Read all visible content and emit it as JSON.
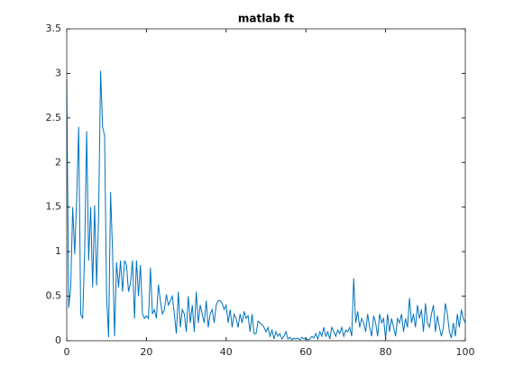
{
  "chart_data": {
    "type": "line",
    "title": "matlab ft",
    "x": [
      0,
      0.5,
      1,
      1.5,
      2,
      2.5,
      3,
      3.5,
      4,
      4.5,
      5,
      5.5,
      6,
      6.5,
      7,
      7.5,
      8,
      8.5,
      9,
      9.5,
      10,
      10.5,
      11,
      11.5,
      12,
      12.5,
      13,
      13.5,
      14,
      14.5,
      15,
      15.5,
      16,
      16.5,
      17,
      17.5,
      18,
      18.5,
      19,
      19.5,
      20,
      20.5,
      21,
      21.5,
      22,
      22.5,
      23,
      23.5,
      24,
      24.5,
      25,
      25.5,
      26,
      26.5,
      27,
      27.5,
      28,
      28.5,
      29,
      29.5,
      30,
      30.5,
      31,
      31.5,
      32,
      32.5,
      33,
      33.5,
      34,
      34.5,
      35,
      35.5,
      36,
      36.5,
      37,
      37.5,
      38,
      38.5,
      39,
      39.5,
      40,
      40.5,
      41,
      41.5,
      42,
      42.5,
      43,
      43.5,
      44,
      44.5,
      45,
      45.5,
      46,
      46.5,
      47,
      47.5,
      48,
      48.5,
      49,
      49.5,
      50,
      50.5,
      51,
      51.5,
      52,
      52.5,
      53,
      53.5,
      54,
      54.5,
      55,
      55.5,
      56,
      56.5,
      57,
      57.5,
      58,
      58.5,
      59,
      59.5,
      60,
      60.5,
      61,
      61.5,
      62,
      62.5,
      63,
      63.5,
      64,
      64.5,
      65,
      65.5,
      66,
      66.5,
      67,
      67.5,
      68,
      68.5,
      69,
      69.5,
      70,
      70.5,
      71,
      71.5,
      72,
      72.5,
      73,
      73.5,
      74,
      74.5,
      75,
      75.5,
      76,
      76.5,
      77,
      77.5,
      78,
      78.5,
      79,
      79.5,
      80,
      80.5,
      81,
      81.5,
      82,
      82.5,
      83,
      83.5,
      84,
      84.5,
      85,
      85.5,
      86,
      86.5,
      87,
      87.5,
      88,
      88.5,
      89,
      89.5,
      90,
      90.5,
      91,
      91.5,
      92,
      92.5,
      93,
      93.5,
      94,
      94.5,
      95,
      95.5,
      96,
      96.5,
      97,
      97.5,
      98,
      98.5,
      99,
      99.5,
      100
    ],
    "series": [
      {
        "color": "#0072bd",
        "values": [
          2.93,
          0.37,
          0.6,
          1.5,
          0.97,
          1.6,
          2.4,
          0.3,
          0.25,
          1.0,
          2.35,
          0.9,
          1.5,
          0.6,
          1.52,
          0.62,
          1.4,
          3.03,
          2.4,
          2.3,
          0.5,
          0.04,
          1.67,
          1.0,
          0.05,
          0.88,
          0.6,
          0.9,
          0.55,
          0.9,
          0.85,
          0.55,
          0.65,
          0.9,
          0.25,
          0.9,
          0.5,
          0.85,
          0.3,
          0.25,
          0.28,
          0.25,
          0.82,
          0.3,
          0.35,
          0.25,
          0.63,
          0.45,
          0.3,
          0.35,
          0.52,
          0.4,
          0.45,
          0.5,
          0.3,
          0.08,
          0.55,
          0.15,
          0.35,
          0.3,
          0.1,
          0.5,
          0.2,
          0.4,
          0.1,
          0.55,
          0.2,
          0.4,
          0.3,
          0.2,
          0.45,
          0.15,
          0.3,
          0.35,
          0.2,
          0.4,
          0.45,
          0.45,
          0.42,
          0.35,
          0.4,
          0.2,
          0.35,
          0.15,
          0.3,
          0.25,
          0.15,
          0.3,
          0.2,
          0.33,
          0.25,
          0.28,
          0.1,
          0.3,
          0.08,
          0.08,
          0.22,
          0.2,
          0.18,
          0.15,
          0.1,
          0.15,
          0.05,
          0.12,
          0.02,
          0.1,
          0.05,
          0.08,
          0.02,
          0.05,
          0.1,
          0.02,
          0.04,
          0.01,
          0.03,
          0.02,
          0.03,
          0.01,
          0.04,
          0.02,
          0.03,
          0.01,
          0.02,
          0.05,
          0.03,
          0.08,
          0.02,
          0.1,
          0.05,
          0.15,
          0.05,
          0.1,
          0.02,
          0.15,
          0.1,
          0.05,
          0.12,
          0.08,
          0.15,
          0.05,
          0.12,
          0.1,
          0.15,
          0.05,
          0.7,
          0.2,
          0.33,
          0.15,
          0.25,
          0.2,
          0.1,
          0.3,
          0.15,
          0.05,
          0.28,
          0.2,
          0.05,
          0.3,
          0.2,
          0.25,
          0.02,
          0.3,
          0.1,
          0.25,
          0.15,
          0.05,
          0.25,
          0.2,
          0.3,
          0.1,
          0.25,
          0.15,
          0.48,
          0.2,
          0.3,
          0.15,
          0.4,
          0.25,
          0.35,
          0.1,
          0.42,
          0.2,
          0.15,
          0.3,
          0.4,
          0.1,
          0.28,
          0.15,
          0.05,
          0.15,
          0.42,
          0.3,
          0.1,
          0.03,
          0.2,
          0.05,
          0.3,
          0.15,
          0.35,
          0.25,
          0.2
        ]
      }
    ],
    "xlim": [
      0,
      100
    ],
    "xticks": [
      0,
      20,
      40,
      60,
      80,
      100
    ],
    "ylim": [
      0,
      3.5
    ],
    "yticks": [
      0,
      0.5,
      1,
      1.5,
      2,
      2.5,
      3,
      3.5
    ]
  }
}
